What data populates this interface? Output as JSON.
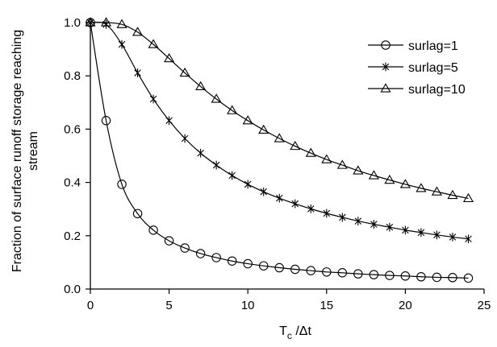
{
  "chart_data": {
    "type": "line",
    "title": "",
    "xlabel_main": "T",
    "xlabel_sub": "c",
    "xlabel_rest": " /Δt",
    "ylabel_lines": [
      "Fraction of surface runoff storage reaching",
      "stream"
    ],
    "xlim": [
      0,
      25
    ],
    "ylim": [
      0,
      1.0
    ],
    "xticks": [
      0,
      5,
      10,
      15,
      20,
      25
    ],
    "yticks": [
      0.0,
      0.2,
      0.4,
      0.6,
      0.8,
      1.0
    ],
    "xtick_labels": [
      "0",
      "5",
      "10",
      "15",
      "20",
      "25"
    ],
    "ytick_labels": [
      "0.0",
      "0.2",
      "0.4",
      "0.6",
      "0.8",
      "1.0"
    ],
    "grid": false,
    "legend_position": "top-right",
    "x": [
      0,
      1,
      2,
      3,
      4,
      5,
      6,
      7,
      8,
      9,
      10,
      11,
      12,
      13,
      14,
      15,
      16,
      17,
      18,
      19,
      20,
      21,
      22,
      23,
      24
    ],
    "series": [
      {
        "name": "surlag=1",
        "marker": "circle",
        "values": [
          1.0,
          0.632,
          0.393,
          0.283,
          0.221,
          0.181,
          0.154,
          0.133,
          0.118,
          0.105,
          0.095,
          0.087,
          0.08,
          0.074,
          0.069,
          0.064,
          0.061,
          0.057,
          0.054,
          0.051,
          0.049,
          0.046,
          0.044,
          0.043,
          0.041
        ]
      },
      {
        "name": "surlag=5",
        "marker": "asterisk",
        "values": [
          1.0,
          0.993,
          0.918,
          0.811,
          0.713,
          0.632,
          0.565,
          0.51,
          0.465,
          0.426,
          0.393,
          0.365,
          0.341,
          0.32,
          0.301,
          0.284,
          0.269,
          0.255,
          0.243,
          0.232,
          0.221,
          0.212,
          0.203,
          0.195,
          0.188
        ]
      },
      {
        "name": "surlag=10",
        "marker": "triangle",
        "values": [
          1.0,
          1.0,
          0.993,
          0.964,
          0.918,
          0.865,
          0.811,
          0.76,
          0.713,
          0.67,
          0.632,
          0.597,
          0.565,
          0.536,
          0.51,
          0.486,
          0.465,
          0.444,
          0.426,
          0.409,
          0.393,
          0.378,
          0.365,
          0.352,
          0.34
        ]
      }
    ]
  }
}
